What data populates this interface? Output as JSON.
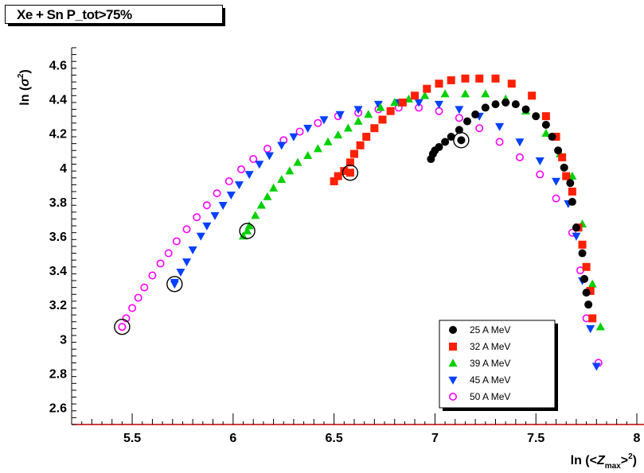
{
  "chart_data": {
    "type": "scatter",
    "title": "Xe + Sn  P_tot>75%",
    "xlabel_parts": {
      "prefix": "ln (<",
      "var": "Z",
      "sub": "max",
      "suffix": ">",
      "sup": "2",
      "close": ")"
    },
    "ylabel_parts": {
      "prefix": "ln (",
      "var": "σ",
      "sup": "2",
      "close": ")"
    },
    "xlim": [
      5.2,
      8.0
    ],
    "ylim": [
      2.5,
      4.7
    ],
    "x_ticks": [
      5.5,
      6,
      6.5,
      7,
      7.5,
      8
    ],
    "x_tick_labels": [
      "5.5",
      "6",
      "6.5",
      "7",
      "7.5",
      "8"
    ],
    "y_ticks": [
      2.6,
      2.8,
      3.0,
      3.2,
      3.4,
      3.6,
      3.8,
      4.0,
      4.2,
      4.4,
      4.6
    ],
    "y_tick_labels": [
      "2.6",
      "2.8",
      "3",
      "3.2",
      "3.4",
      "3.6",
      "3.8",
      "4",
      "4.2",
      "4.4",
      "4.6"
    ],
    "legend_position": "bottom-right",
    "series": [
      {
        "name": "25 A MeV",
        "marker": "circle-filled",
        "color": "#000000",
        "circled_point": [
          7.13,
          4.16
        ],
        "points": [
          [
            6.98,
            4.05
          ],
          [
            6.99,
            4.08
          ],
          [
            7.0,
            4.1
          ],
          [
            7.02,
            4.12
          ],
          [
            7.05,
            4.15
          ],
          [
            7.08,
            4.18
          ],
          [
            7.12,
            4.22
          ],
          [
            7.16,
            4.27
          ],
          [
            7.2,
            4.31
          ],
          [
            7.25,
            4.35
          ],
          [
            7.3,
            4.37
          ],
          [
            7.35,
            4.38
          ],
          [
            7.4,
            4.37
          ],
          [
            7.45,
            4.34
          ],
          [
            7.5,
            4.3
          ],
          [
            7.55,
            4.25
          ],
          [
            7.58,
            4.18
          ],
          [
            7.61,
            4.1
          ],
          [
            7.64,
            4.0
          ],
          [
            7.67,
            3.91
          ],
          [
            7.68,
            3.8
          ],
          [
            7.7,
            3.65
          ],
          [
            7.73,
            3.5
          ],
          [
            7.74,
            3.35
          ],
          [
            7.76,
            3.2
          ],
          [
            7.75,
            3.27
          ]
        ]
      },
      {
        "name": "32 A MeV",
        "marker": "square-filled",
        "color": "#ff2000",
        "circled_point": [
          6.58,
          3.97
        ],
        "points": [
          [
            6.5,
            3.92
          ],
          [
            6.52,
            3.95
          ],
          [
            6.55,
            3.98
          ],
          [
            6.58,
            4.03
          ],
          [
            6.6,
            4.08
          ],
          [
            6.63,
            4.13
          ],
          [
            6.66,
            4.18
          ],
          [
            6.7,
            4.23
          ],
          [
            6.74,
            4.28
          ],
          [
            6.78,
            4.33
          ],
          [
            6.84,
            4.38
          ],
          [
            6.9,
            4.42
          ],
          [
            6.96,
            4.46
          ],
          [
            7.02,
            4.49
          ],
          [
            7.08,
            4.51
          ],
          [
            7.15,
            4.52
          ],
          [
            7.22,
            4.52
          ],
          [
            7.3,
            4.52
          ],
          [
            7.38,
            4.49
          ],
          [
            7.48,
            4.42
          ],
          [
            7.55,
            4.3
          ],
          [
            7.6,
            4.18
          ],
          [
            7.63,
            4.06
          ],
          [
            7.65,
            3.95
          ],
          [
            7.68,
            3.86
          ],
          [
            7.71,
            3.65
          ],
          [
            7.73,
            3.55
          ],
          [
            7.75,
            3.42
          ],
          [
            7.77,
            3.28
          ],
          [
            7.78,
            3.12
          ]
        ]
      },
      {
        "name": "39 A MeV",
        "marker": "triangle-up-filled",
        "color": "#00d000",
        "circled_point": [
          6.07,
          3.63
        ],
        "points": [
          [
            6.05,
            3.6
          ],
          [
            6.08,
            3.66
          ],
          [
            6.11,
            3.72
          ],
          [
            6.14,
            3.78
          ],
          [
            6.17,
            3.83
          ],
          [
            6.2,
            3.88
          ],
          [
            6.24,
            3.93
          ],
          [
            6.28,
            3.98
          ],
          [
            6.32,
            4.03
          ],
          [
            6.37,
            4.07
          ],
          [
            6.42,
            4.11
          ],
          [
            6.47,
            4.15
          ],
          [
            6.52,
            4.19
          ],
          [
            6.57,
            4.23
          ],
          [
            6.62,
            4.27
          ],
          [
            6.67,
            4.31
          ],
          [
            6.73,
            4.35
          ],
          [
            6.8,
            4.38
          ],
          [
            6.87,
            4.4
          ],
          [
            6.95,
            4.42
          ],
          [
            7.05,
            4.43
          ],
          [
            7.15,
            4.43
          ],
          [
            7.25,
            4.43
          ],
          [
            7.35,
            4.4
          ],
          [
            7.45,
            4.33
          ],
          [
            7.55,
            4.2
          ],
          [
            7.62,
            4.08
          ],
          [
            7.68,
            3.95
          ],
          [
            7.73,
            3.67
          ],
          [
            7.78,
            3.32
          ],
          [
            7.82,
            3.07
          ]
        ]
      },
      {
        "name": "45 A MeV",
        "marker": "triangle-down-filled",
        "color": "#0040ff",
        "circled_point": [
          5.71,
          3.32
        ],
        "points": [
          [
            5.71,
            3.33
          ],
          [
            5.74,
            3.39
          ],
          [
            5.77,
            3.45
          ],
          [
            5.8,
            3.52
          ],
          [
            5.84,
            3.6
          ],
          [
            5.87,
            3.66
          ],
          [
            5.91,
            3.72
          ],
          [
            5.95,
            3.78
          ],
          [
            5.99,
            3.84
          ],
          [
            6.03,
            3.9
          ],
          [
            6.08,
            3.96
          ],
          [
            6.13,
            4.02
          ],
          [
            6.18,
            4.07
          ],
          [
            6.24,
            4.13
          ],
          [
            6.3,
            4.18
          ],
          [
            6.37,
            4.23
          ],
          [
            6.45,
            4.28
          ],
          [
            6.53,
            4.31
          ],
          [
            6.62,
            4.34
          ],
          [
            6.72,
            4.37
          ],
          [
            6.82,
            4.38
          ],
          [
            6.92,
            4.38
          ],
          [
            7.02,
            4.37
          ],
          [
            7.12,
            4.34
          ],
          [
            7.22,
            4.3
          ],
          [
            7.32,
            4.24
          ],
          [
            7.42,
            4.15
          ],
          [
            7.52,
            4.04
          ],
          [
            7.6,
            3.92
          ],
          [
            7.66,
            3.79
          ],
          [
            7.7,
            3.6
          ],
          [
            7.73,
            3.34
          ],
          [
            7.77,
            3.06
          ],
          [
            7.8,
            2.84
          ]
        ]
      },
      {
        "name": "50 A MeV",
        "marker": "circle-open",
        "color": "#ff00ff",
        "circled_point": [
          5.45,
          3.07
        ],
        "points": [
          [
            5.45,
            3.07
          ],
          [
            5.47,
            3.12
          ],
          [
            5.5,
            3.18
          ],
          [
            5.53,
            3.24
          ],
          [
            5.56,
            3.3
          ],
          [
            5.6,
            3.37
          ],
          [
            5.64,
            3.44
          ],
          [
            5.68,
            3.5
          ],
          [
            5.72,
            3.57
          ],
          [
            5.77,
            3.64
          ],
          [
            5.82,
            3.71
          ],
          [
            5.87,
            3.78
          ],
          [
            5.92,
            3.85
          ],
          [
            5.98,
            3.92
          ],
          [
            6.04,
            3.99
          ],
          [
            6.1,
            4.05
          ],
          [
            6.17,
            4.11
          ],
          [
            6.25,
            4.16
          ],
          [
            6.33,
            4.21
          ],
          [
            6.42,
            4.26
          ],
          [
            6.52,
            4.3
          ],
          [
            6.62,
            4.32
          ],
          [
            6.72,
            4.34
          ],
          [
            6.82,
            4.35
          ],
          [
            6.92,
            4.35
          ],
          [
            7.02,
            4.33
          ],
          [
            7.12,
            4.29
          ],
          [
            7.22,
            4.23
          ],
          [
            7.32,
            4.15
          ],
          [
            7.42,
            4.06
          ],
          [
            7.52,
            3.96
          ],
          [
            7.6,
            3.82
          ],
          [
            7.68,
            3.62
          ],
          [
            7.72,
            3.4
          ],
          [
            7.75,
            3.12
          ],
          [
            7.81,
            2.86
          ]
        ]
      }
    ]
  }
}
